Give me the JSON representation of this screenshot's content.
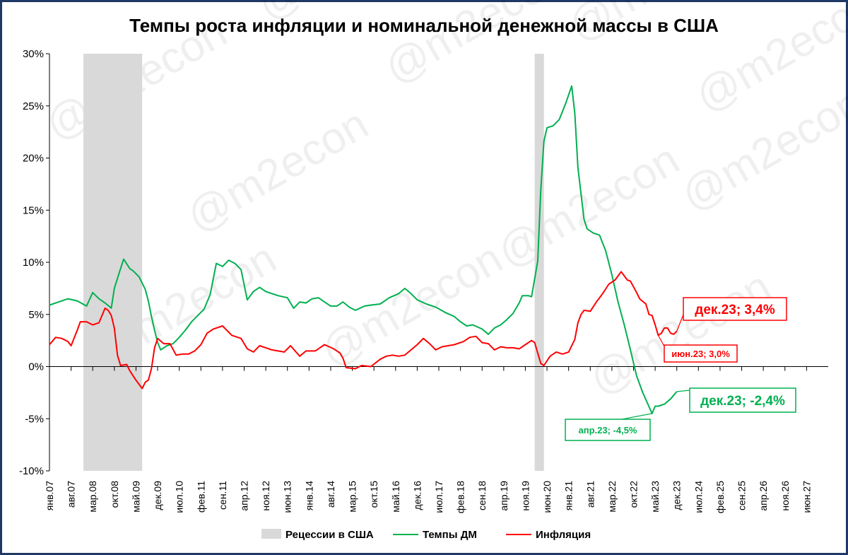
{
  "chart_data": {
    "type": "line",
    "title": "Темпы роста инфляции и номинальной денежной массы в США",
    "xlabel": "",
    "ylabel": "",
    "ylim": [
      -10,
      30
    ],
    "y_ticks": [
      "30%",
      "25%",
      "20%",
      "15%",
      "10%",
      "5%",
      "0%",
      "-5%",
      "-10%"
    ],
    "x_tick_labels": [
      "янв.07",
      "авг.07",
      "мар.08",
      "окт.08",
      "май.09",
      "дек.09",
      "июл.10",
      "фев.11",
      "сен.11",
      "апр.12",
      "ноя.12",
      "июн.13",
      "янв.14",
      "авг.14",
      "мар.15",
      "окт.15",
      "май.16",
      "дек.16",
      "июл.17",
      "фев.18",
      "сен.18",
      "апр.19",
      "ноя.19",
      "июн.20",
      "янв.21",
      "авг.21",
      "мар.22",
      "окт.22",
      "май.23",
      "дек.23",
      "июл.24",
      "фев.25",
      "сен.25",
      "апр.26",
      "ноя.26",
      "июн.27"
    ],
    "x_start": "2007-01",
    "x_end": "2027-12",
    "grid": false,
    "legend_position": "bottom",
    "recessions": [
      {
        "start": "2007-12",
        "end": "2009-06"
      },
      {
        "start": "2020-02",
        "end": "2020-04"
      }
    ],
    "legend": {
      "recession": "Рецессии в США",
      "m2": "Темпы ДМ",
      "cpi": "Инфляция"
    },
    "series": [
      {
        "name": "Темпы ДМ",
        "color": "#00b050",
        "points": [
          [
            "2007-01",
            5.9
          ],
          [
            "2007-04",
            6.2
          ],
          [
            "2007-07",
            6.5
          ],
          [
            "2007-10",
            6.3
          ],
          [
            "2008-01",
            5.8
          ],
          [
            "2008-03",
            7.1
          ],
          [
            "2008-05",
            6.5
          ],
          [
            "2008-07",
            6.1
          ],
          [
            "2008-09",
            5.6
          ],
          [
            "2008-10",
            7.5
          ],
          [
            "2008-12",
            9.4
          ],
          [
            "2009-01",
            10.3
          ],
          [
            "2009-03",
            9.4
          ],
          [
            "2009-04",
            9.2
          ],
          [
            "2009-06",
            8.6
          ],
          [
            "2009-08",
            7.4
          ],
          [
            "2009-09",
            6.3
          ],
          [
            "2009-10",
            4.8
          ],
          [
            "2009-11",
            3.5
          ],
          [
            "2009-12",
            2.3
          ],
          [
            "2010-01",
            1.6
          ],
          [
            "2010-03",
            2.0
          ],
          [
            "2010-05",
            2.2
          ],
          [
            "2010-07",
            2.8
          ],
          [
            "2010-09",
            3.5
          ],
          [
            "2010-11",
            4.3
          ],
          [
            "2011-01",
            4.9
          ],
          [
            "2011-03",
            5.5
          ],
          [
            "2011-05",
            6.9
          ],
          [
            "2011-07",
            9.9
          ],
          [
            "2011-09",
            9.6
          ],
          [
            "2011-11",
            10.2
          ],
          [
            "2012-01",
            9.9
          ],
          [
            "2012-03",
            9.3
          ],
          [
            "2012-05",
            6.4
          ],
          [
            "2012-07",
            7.2
          ],
          [
            "2012-09",
            7.6
          ],
          [
            "2012-11",
            7.2
          ],
          [
            "2013-01",
            7.0
          ],
          [
            "2013-03",
            6.8
          ],
          [
            "2013-06",
            6.6
          ],
          [
            "2013-08",
            5.6
          ],
          [
            "2013-10",
            6.2
          ],
          [
            "2013-12",
            6.1
          ],
          [
            "2014-02",
            6.5
          ],
          [
            "2014-04",
            6.6
          ],
          [
            "2014-06",
            6.2
          ],
          [
            "2014-08",
            5.8
          ],
          [
            "2014-10",
            5.8
          ],
          [
            "2014-12",
            6.2
          ],
          [
            "2015-02",
            5.7
          ],
          [
            "2015-04",
            5.4
          ],
          [
            "2015-07",
            5.8
          ],
          [
            "2015-09",
            5.9
          ],
          [
            "2015-12",
            6.0
          ],
          [
            "2016-03",
            6.6
          ],
          [
            "2016-06",
            7.0
          ],
          [
            "2016-08",
            7.5
          ],
          [
            "2016-10",
            7.0
          ],
          [
            "2016-12",
            6.4
          ],
          [
            "2017-03",
            6.0
          ],
          [
            "2017-06",
            5.7
          ],
          [
            "2017-09",
            5.2
          ],
          [
            "2017-12",
            4.8
          ],
          [
            "2018-02",
            4.3
          ],
          [
            "2018-04",
            3.9
          ],
          [
            "2018-06",
            4.0
          ],
          [
            "2018-09",
            3.6
          ],
          [
            "2018-11",
            3.1
          ],
          [
            "2019-01",
            3.7
          ],
          [
            "2019-03",
            4.0
          ],
          [
            "2019-05",
            4.5
          ],
          [
            "2019-07",
            5.1
          ],
          [
            "2019-09",
            6.1
          ],
          [
            "2019-10",
            6.8
          ],
          [
            "2019-12",
            6.8
          ],
          [
            "2020-01",
            6.7
          ],
          [
            "2020-03",
            10.1
          ],
          [
            "2020-04",
            17.0
          ],
          [
            "2020-05",
            21.6
          ],
          [
            "2020-06",
            22.9
          ],
          [
            "2020-08",
            23.1
          ],
          [
            "2020-10",
            23.7
          ],
          [
            "2020-12",
            25.2
          ],
          [
            "2021-02",
            26.9
          ],
          [
            "2021-03",
            24.3
          ],
          [
            "2021-04",
            19.1
          ],
          [
            "2021-06",
            14.1
          ],
          [
            "2021-07",
            13.2
          ],
          [
            "2021-09",
            12.8
          ],
          [
            "2021-11",
            12.6
          ],
          [
            "2022-01",
            11.1
          ],
          [
            "2022-03",
            8.8
          ],
          [
            "2022-05",
            6.2
          ],
          [
            "2022-07",
            4.0
          ],
          [
            "2022-09",
            1.6
          ],
          [
            "2022-11",
            -0.9
          ],
          [
            "2023-01",
            -2.5
          ],
          [
            "2023-04",
            -4.5
          ],
          [
            "2023-05",
            -3.8
          ],
          [
            "2023-06",
            -3.8
          ],
          [
            "2023-08",
            -3.6
          ],
          [
            "2023-10",
            -3.1
          ],
          [
            "2023-12",
            -2.4
          ]
        ]
      },
      {
        "name": "Инфляция",
        "color": "#ff0000",
        "points": [
          [
            "2007-01",
            2.1
          ],
          [
            "2007-03",
            2.8
          ],
          [
            "2007-05",
            2.7
          ],
          [
            "2007-07",
            2.4
          ],
          [
            "2007-08",
            2.0
          ],
          [
            "2007-10",
            3.5
          ],
          [
            "2007-11",
            4.3
          ],
          [
            "2008-01",
            4.3
          ],
          [
            "2008-03",
            4.0
          ],
          [
            "2008-05",
            4.2
          ],
          [
            "2008-07",
            5.6
          ],
          [
            "2008-08",
            5.4
          ],
          [
            "2008-09",
            4.9
          ],
          [
            "2008-10",
            3.7
          ],
          [
            "2008-11",
            1.1
          ],
          [
            "2008-12",
            0.1
          ],
          [
            "2009-02",
            0.2
          ],
          [
            "2009-03",
            -0.4
          ],
          [
            "2009-05",
            -1.3
          ],
          [
            "2009-07",
            -2.1
          ],
          [
            "2009-08",
            -1.5
          ],
          [
            "2009-09",
            -1.3
          ],
          [
            "2009-10",
            -0.2
          ],
          [
            "2009-11",
            1.8
          ],
          [
            "2009-12",
            2.7
          ],
          [
            "2010-02",
            2.2
          ],
          [
            "2010-04",
            2.2
          ],
          [
            "2010-06",
            1.1
          ],
          [
            "2010-08",
            1.2
          ],
          [
            "2010-10",
            1.2
          ],
          [
            "2010-12",
            1.5
          ],
          [
            "2011-02",
            2.1
          ],
          [
            "2011-04",
            3.2
          ],
          [
            "2011-06",
            3.6
          ],
          [
            "2011-09",
            3.9
          ],
          [
            "2011-12",
            3.0
          ],
          [
            "2012-03",
            2.7
          ],
          [
            "2012-05",
            1.7
          ],
          [
            "2012-07",
            1.4
          ],
          [
            "2012-09",
            2.0
          ],
          [
            "2012-11",
            1.8
          ],
          [
            "2013-01",
            1.6
          ],
          [
            "2013-03",
            1.5
          ],
          [
            "2013-05",
            1.4
          ],
          [
            "2013-07",
            2.0
          ],
          [
            "2013-10",
            1.0
          ],
          [
            "2013-12",
            1.5
          ],
          [
            "2014-03",
            1.5
          ],
          [
            "2014-06",
            2.1
          ],
          [
            "2014-09",
            1.7
          ],
          [
            "2014-11",
            1.3
          ],
          [
            "2014-12",
            0.8
          ],
          [
            "2015-01",
            -0.1
          ],
          [
            "2015-04",
            -0.2
          ],
          [
            "2015-06",
            0.1
          ],
          [
            "2015-09",
            0.0
          ],
          [
            "2015-12",
            0.7
          ],
          [
            "2016-02",
            1.0
          ],
          [
            "2016-04",
            1.1
          ],
          [
            "2016-06",
            1.0
          ],
          [
            "2016-08",
            1.1
          ],
          [
            "2016-10",
            1.6
          ],
          [
            "2016-12",
            2.1
          ],
          [
            "2017-02",
            2.7
          ],
          [
            "2017-04",
            2.2
          ],
          [
            "2017-06",
            1.6
          ],
          [
            "2017-08",
            1.9
          ],
          [
            "2017-10",
            2.0
          ],
          [
            "2017-12",
            2.1
          ],
          [
            "2018-03",
            2.4
          ],
          [
            "2018-05",
            2.8
          ],
          [
            "2018-07",
            2.9
          ],
          [
            "2018-09",
            2.3
          ],
          [
            "2018-11",
            2.2
          ],
          [
            "2019-01",
            1.6
          ],
          [
            "2019-03",
            1.9
          ],
          [
            "2019-05",
            1.8
          ],
          [
            "2019-07",
            1.8
          ],
          [
            "2019-09",
            1.7
          ],
          [
            "2019-11",
            2.1
          ],
          [
            "2020-01",
            2.5
          ],
          [
            "2020-02",
            2.3
          ],
          [
            "2020-04",
            0.3
          ],
          [
            "2020-05",
            0.1
          ],
          [
            "2020-07",
            1.0
          ],
          [
            "2020-09",
            1.4
          ],
          [
            "2020-11",
            1.2
          ],
          [
            "2021-01",
            1.4
          ],
          [
            "2021-03",
            2.6
          ],
          [
            "2021-04",
            4.2
          ],
          [
            "2021-05",
            5.0
          ],
          [
            "2021-06",
            5.4
          ],
          [
            "2021-08",
            5.3
          ],
          [
            "2021-10",
            6.2
          ],
          [
            "2021-12",
            7.0
          ],
          [
            "2022-02",
            7.9
          ],
          [
            "2022-04",
            8.3
          ],
          [
            "2022-06",
            9.1
          ],
          [
            "2022-08",
            8.3
          ],
          [
            "2022-09",
            8.2
          ],
          [
            "2022-11",
            7.1
          ],
          [
            "2022-12",
            6.5
          ],
          [
            "2023-02",
            6.0
          ],
          [
            "2023-03",
            5.0
          ],
          [
            "2023-04",
            4.9
          ],
          [
            "2023-05",
            4.0
          ],
          [
            "2023-06",
            3.0
          ],
          [
            "2023-07",
            3.2
          ],
          [
            "2023-08",
            3.7
          ],
          [
            "2023-09",
            3.7
          ],
          [
            "2023-10",
            3.2
          ],
          [
            "2023-11",
            3.1
          ],
          [
            "2023-12",
            3.4
          ]
        ]
      }
    ],
    "annotations": [
      {
        "id": "cpi_dec23",
        "text": "дек.23; 3,4%",
        "color": "#ff0000",
        "at": "2023-12",
        "value": 3.4
      },
      {
        "id": "cpi_jun23",
        "text": "июн.23; 3,0%",
        "color": "#ff0000",
        "at": "2023-06",
        "value": 3.0
      },
      {
        "id": "m2_dec23",
        "text": "дек.23; -2,4%",
        "color": "#00b050",
        "at": "2023-12",
        "value": -2.4
      },
      {
        "id": "m2_apr23",
        "text": "апр.23; -4,5%",
        "color": "#00b050",
        "at": "2023-04",
        "value": -4.5
      }
    ]
  }
}
